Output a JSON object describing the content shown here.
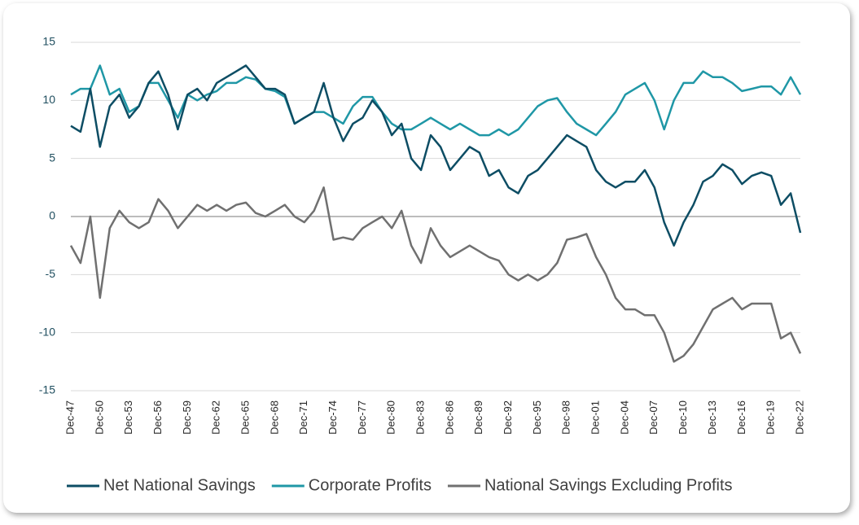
{
  "chart_data": {
    "type": "line",
    "categories": [
      "Dec-47",
      null,
      null,
      "Dec-50",
      null,
      null,
      "Dec-53",
      null,
      null,
      "Dec-56",
      null,
      null,
      "Dec-59",
      null,
      null,
      "Dec-62",
      null,
      null,
      "Dec-65",
      null,
      null,
      "Dec-68",
      null,
      null,
      "Dec-71",
      null,
      null,
      "Dec-74",
      null,
      null,
      "Dec-77",
      null,
      null,
      "Dec-80",
      null,
      null,
      "Dec-83",
      null,
      null,
      "Dec-86",
      null,
      null,
      "Dec-89",
      null,
      null,
      "Dec-92",
      null,
      null,
      "Dec-95",
      null,
      null,
      "Dec-98",
      null,
      null,
      "Dec-01",
      null,
      null,
      "Dec-04",
      null,
      null,
      "Dec-07",
      null,
      null,
      "Dec-10",
      null,
      null,
      "Dec-13",
      null,
      null,
      "Dec-16",
      null,
      null,
      "Dec-19",
      null,
      null,
      "Dec-22"
    ],
    "series": [
      {
        "name": "Net National Savings",
        "color": "#0d4d64",
        "values": [
          7.8,
          7.3,
          11,
          6,
          9.5,
          10.5,
          8.5,
          9.5,
          11.5,
          12.5,
          10.5,
          7.5,
          10.5,
          11,
          10,
          11.5,
          12,
          12.5,
          13,
          12,
          11,
          11,
          10.5,
          8,
          8.5,
          9,
          11.5,
          8.5,
          6.5,
          8,
          8.5,
          10,
          9,
          7,
          8,
          5,
          4,
          7,
          6,
          4,
          5,
          6,
          5.5,
          3.5,
          4,
          2.5,
          2,
          3.5,
          4,
          5,
          6,
          7,
          6.5,
          6,
          4,
          3,
          2.5,
          3,
          3,
          4,
          2.5,
          -0.5,
          -2.5,
          -0.5,
          1,
          3,
          3.5,
          4.5,
          4,
          2.8,
          3.5,
          3.8,
          3.5,
          1,
          2,
          -1.4
        ]
      },
      {
        "name": "Corporate Profits",
        "color": "#1f97a6",
        "values": [
          10.5,
          11,
          11,
          13,
          10.5,
          11,
          9,
          9.5,
          11.5,
          11.5,
          10,
          8.5,
          10.5,
          10,
          10.5,
          10.8,
          11.5,
          11.5,
          12,
          11.8,
          11,
          10.8,
          10.3,
          8,
          8.5,
          9,
          9,
          8.5,
          8,
          9.5,
          10.3,
          10.3,
          9,
          8,
          7.5,
          7.5,
          8,
          8.5,
          8,
          7.5,
          8,
          7.5,
          7,
          7,
          7.5,
          7,
          7.5,
          8.5,
          9.5,
          10,
          10.2,
          9,
          8,
          7.5,
          7,
          8,
          9,
          10.5,
          11,
          11.5,
          10,
          7.5,
          10,
          11.5,
          11.5,
          12.5,
          12,
          12,
          11.5,
          10.8,
          11,
          11.2,
          11.2,
          10.5,
          12,
          10.5
        ]
      },
      {
        "name": "National Savings Excluding Profits",
        "color": "#707070",
        "values": [
          -2.5,
          -4,
          0,
          -7,
          -1,
          0.5,
          -0.5,
          -1,
          -0.5,
          1.5,
          0.5,
          -1,
          0,
          1,
          0.5,
          1,
          0.5,
          1,
          1.2,
          0.3,
          0,
          0.5,
          1,
          0,
          -0.5,
          0.5,
          2.5,
          -2,
          -1.8,
          -2,
          -1,
          -0.5,
          0,
          -1,
          0.5,
          -2.5,
          -4,
          -1,
          -2.5,
          -3.5,
          -3,
          -2.5,
          -3,
          -3.5,
          -3.8,
          -5,
          -5.5,
          -5,
          -5.5,
          -5,
          -4,
          -2,
          -1.8,
          -1.5,
          -3.5,
          -5,
          -7,
          -8,
          -8,
          -8.5,
          -8.5,
          -10,
          -12.5,
          -12,
          -11,
          -9.5,
          -8,
          -7.5,
          -7,
          -8,
          -7.5,
          -7.5,
          -7.5,
          -10.5,
          -10,
          -11.8
        ]
      }
    ],
    "ylim": [
      -15,
      15
    ],
    "yticks": [
      15,
      10,
      5,
      0,
      -5,
      -10,
      -15
    ],
    "grid": true,
    "legend": "bottom"
  }
}
